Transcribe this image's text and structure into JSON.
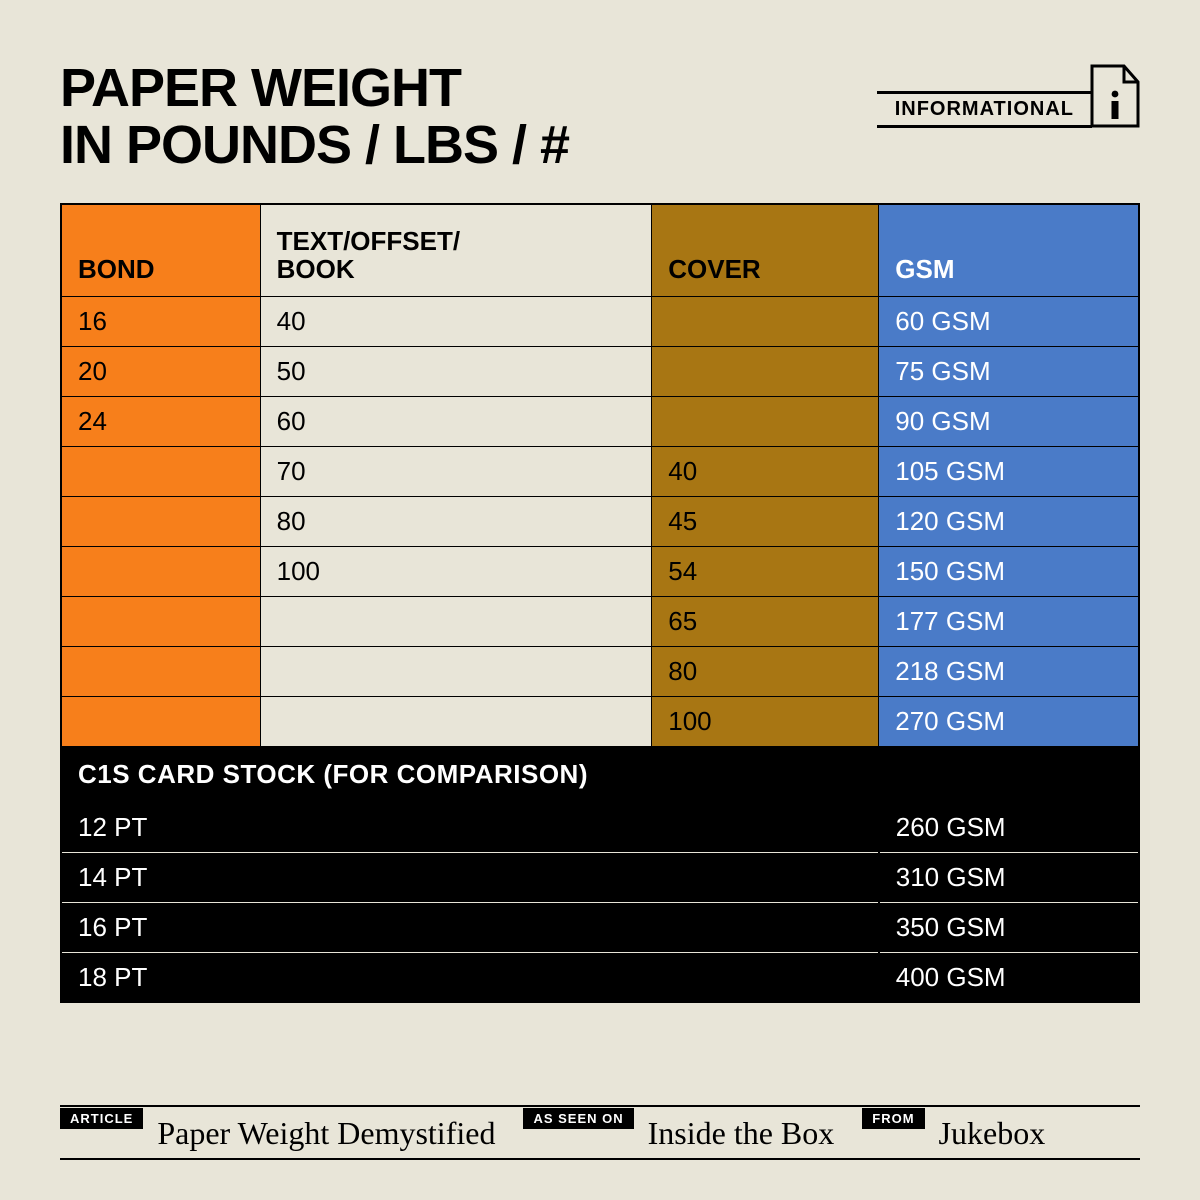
{
  "title_line1": "PAPER WEIGHT",
  "title_line2": "IN POUNDS / LBS / #",
  "info_label": "INFORMATIONAL",
  "colors": {
    "background": "#e8e5d8",
    "bond": "#f77f1b",
    "text_offset": "#e8e5d8",
    "cover": "#a87613",
    "gsm": "#4a7bc8",
    "gsm_text": "#ffffff",
    "black": "#000000"
  },
  "table": {
    "type": "table",
    "columns": [
      {
        "key": "bond",
        "label": "BOND",
        "bg": "#f77f1b",
        "fg": "#000000"
      },
      {
        "key": "text",
        "label": "TEXT/OFFSET/\nBOOK",
        "bg": "#e8e5d8",
        "fg": "#000000"
      },
      {
        "key": "cover",
        "label": "COVER",
        "bg": "#a87613",
        "fg": "#000000"
      },
      {
        "key": "gsm",
        "label": "GSM",
        "bg": "#4a7bc8",
        "fg": "#ffffff"
      }
    ],
    "rows": [
      {
        "bond": "16",
        "text": "40",
        "cover": "",
        "gsm": "60 GSM"
      },
      {
        "bond": "20",
        "text": "50",
        "cover": "",
        "gsm": "75 GSM"
      },
      {
        "bond": "24",
        "text": "60",
        "cover": "",
        "gsm": "90 GSM"
      },
      {
        "bond": "",
        "text": "70",
        "cover": "40",
        "gsm": "105 GSM"
      },
      {
        "bond": "",
        "text": "80",
        "cover": "45",
        "gsm": "120 GSM"
      },
      {
        "bond": "",
        "text": "100",
        "cover": "54",
        "gsm": "150 GSM"
      },
      {
        "bond": "",
        "text": "",
        "cover": "65",
        "gsm": "177 GSM"
      },
      {
        "bond": "",
        "text": "",
        "cover": "80",
        "gsm": "218 GSM"
      },
      {
        "bond": "",
        "text": "",
        "cover": "100",
        "gsm": "270 GSM"
      }
    ]
  },
  "comparison": {
    "header": "C1S CARD STOCK (FOR COMPARISON)",
    "rows": [
      {
        "pt": "12 PT",
        "gsm": "260 GSM"
      },
      {
        "pt": "14 PT",
        "gsm": "310 GSM"
      },
      {
        "pt": "16 PT",
        "gsm": "350 GSM"
      },
      {
        "pt": "18 PT",
        "gsm": "400 GSM"
      }
    ]
  },
  "footer": {
    "article_tag": "ARTICLE",
    "article_name": "Paper Weight Demystified",
    "seen_tag": "AS SEEN ON",
    "seen_name": "Inside the Box",
    "from_tag": "FROM",
    "from_name": "Jukebox"
  },
  "typography": {
    "title_fontsize": 54,
    "header_fontsize": 26,
    "cell_fontsize": 26,
    "footer_tag_fontsize": 13,
    "footer_script_fontsize": 32
  }
}
